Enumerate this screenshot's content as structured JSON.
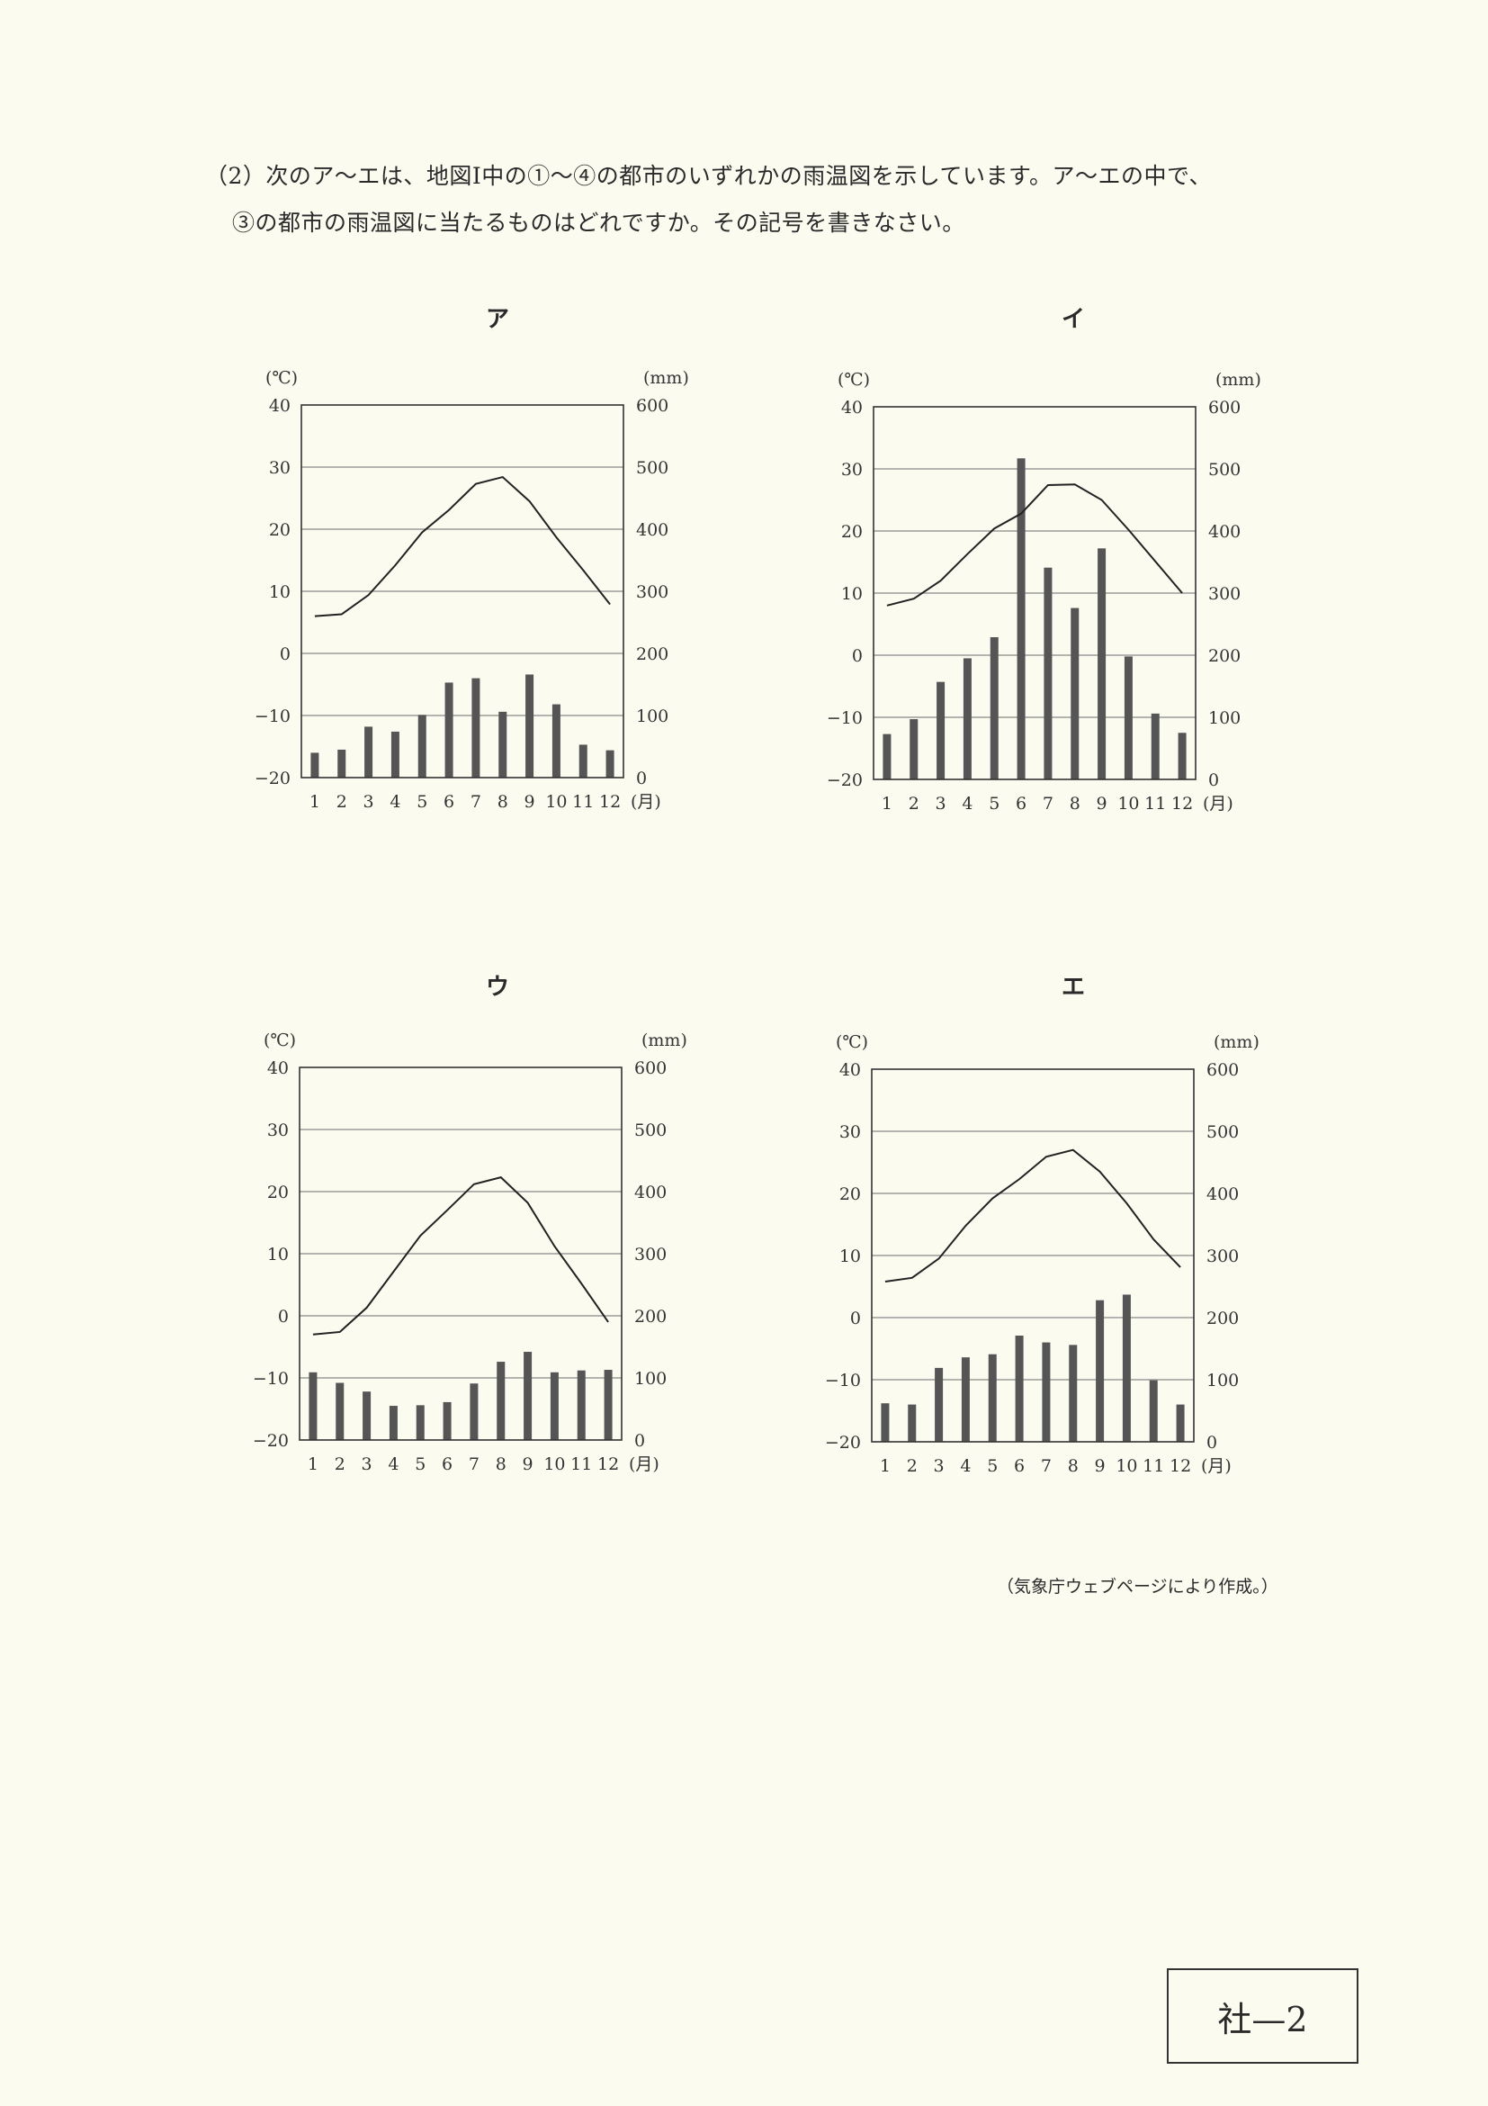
{
  "question": {
    "line1": "（2）次のア〜エは、地図Ⅰ中の①〜④の都市のいずれかの雨温図を示しています。ア〜エの中で、",
    "line2": "③の都市の雨温図に当たるものはどれですか。その記号を書きなさい。"
  },
  "source_note": "（気象庁ウェブページにより作成。）",
  "page_label": "社—2",
  "colors": {
    "background": "#fbfbf0",
    "bar": "#555555",
    "line": "#222222",
    "grid": "#888888"
  },
  "chart_data": [
    {
      "type": "bar+line",
      "title": "ア",
      "left_unit": "(℃)",
      "right_unit": "(mm)",
      "x_unit": "(月)",
      "categories": [
        "1",
        "2",
        "3",
        "4",
        "5",
        "6",
        "7",
        "8",
        "9",
        "10",
        "11",
        "12"
      ],
      "left_ticks": [
        "40",
        "30",
        "20",
        "10",
        "0",
        "−10",
        "−20"
      ],
      "right_ticks": [
        "600",
        "500",
        "400",
        "300",
        "200",
        "100",
        "0"
      ],
      "ylim_left": [
        -20,
        40
      ],
      "ylim_right": [
        0,
        600
      ],
      "grid": true,
      "series": [
        {
          "kind": "line",
          "axis": "left",
          "values": [
            6.0,
            6.3,
            9.4,
            14.2,
            19.5,
            23.1,
            27.3,
            28.4,
            24.5,
            18.7,
            13.4,
            7.9
          ]
        },
        {
          "kind": "bar",
          "axis": "right",
          "values": [
            40,
            45,
            82,
            74,
            101,
            153,
            160,
            106,
            166,
            118,
            53,
            44
          ]
        }
      ]
    },
    {
      "type": "bar+line",
      "title": "イ",
      "left_unit": "(℃)",
      "right_unit": "(mm)",
      "x_unit": "(月)",
      "categories": [
        "1",
        "2",
        "3",
        "4",
        "5",
        "6",
        "7",
        "8",
        "9",
        "10",
        "11",
        "12"
      ],
      "left_ticks": [
        "40",
        "30",
        "20",
        "10",
        "0",
        "−10",
        "−20"
      ],
      "right_ticks": [
        "600",
        "500",
        "400",
        "300",
        "200",
        "100",
        "0"
      ],
      "ylim_left": [
        -20,
        40
      ],
      "ylim_right": [
        0,
        600
      ],
      "grid": true,
      "series": [
        {
          "kind": "line",
          "axis": "left",
          "values": [
            8.0,
            9.1,
            12.0,
            16.3,
            20.4,
            22.8,
            27.4,
            27.5,
            25.0,
            20.2,
            15.1,
            10.0
          ]
        },
        {
          "kind": "bar",
          "axis": "right",
          "values": [
            73,
            97,
            157,
            195,
            229,
            517,
            341,
            276,
            372,
            198,
            106,
            75
          ]
        }
      ]
    },
    {
      "type": "bar+line",
      "title": "ウ",
      "left_unit": "(℃)",
      "right_unit": "(mm)",
      "x_unit": "(月)",
      "categories": [
        "1",
        "2",
        "3",
        "4",
        "5",
        "6",
        "7",
        "8",
        "9",
        "10",
        "11",
        "12"
      ],
      "left_ticks": [
        "40",
        "30",
        "20",
        "10",
        "0",
        "−10",
        "−20"
      ],
      "right_ticks": [
        "600",
        "500",
        "400",
        "300",
        "200",
        "100",
        "0"
      ],
      "ylim_left": [
        -20,
        40
      ],
      "ylim_right": [
        0,
        600
      ],
      "grid": true,
      "series": [
        {
          "kind": "line",
          "axis": "left",
          "values": [
            -3.0,
            -2.6,
            1.3,
            7.1,
            12.9,
            17.0,
            21.2,
            22.3,
            18.2,
            11.2,
            5.2,
            -1.0
          ]
        },
        {
          "kind": "bar",
          "axis": "right",
          "values": [
            109,
            92,
            78,
            55,
            56,
            61,
            91,
            126,
            142,
            109,
            112,
            113
          ]
        }
      ]
    },
    {
      "type": "bar+line",
      "title": "エ",
      "left_unit": "(℃)",
      "right_unit": "(mm)",
      "x_unit": "(月)",
      "categories": [
        "1",
        "2",
        "3",
        "4",
        "5",
        "6",
        "7",
        "8",
        "9",
        "10",
        "11",
        "12"
      ],
      "left_ticks": [
        "40",
        "30",
        "20",
        "10",
        "0",
        "−10",
        "−20"
      ],
      "right_ticks": [
        "600",
        "500",
        "400",
        "300",
        "200",
        "100",
        "0"
      ],
      "ylim_left": [
        -20,
        40
      ],
      "ylim_right": [
        0,
        600
      ],
      "grid": true,
      "series": [
        {
          "kind": "line",
          "axis": "left",
          "values": [
            5.8,
            6.4,
            9.5,
            14.8,
            19.2,
            22.3,
            25.9,
            27.0,
            23.5,
            18.4,
            12.6,
            8.1
          ]
        },
        {
          "kind": "bar",
          "axis": "right",
          "values": [
            62,
            60,
            119,
            136,
            141,
            171,
            160,
            156,
            228,
            237,
            99,
            60
          ]
        }
      ]
    }
  ]
}
